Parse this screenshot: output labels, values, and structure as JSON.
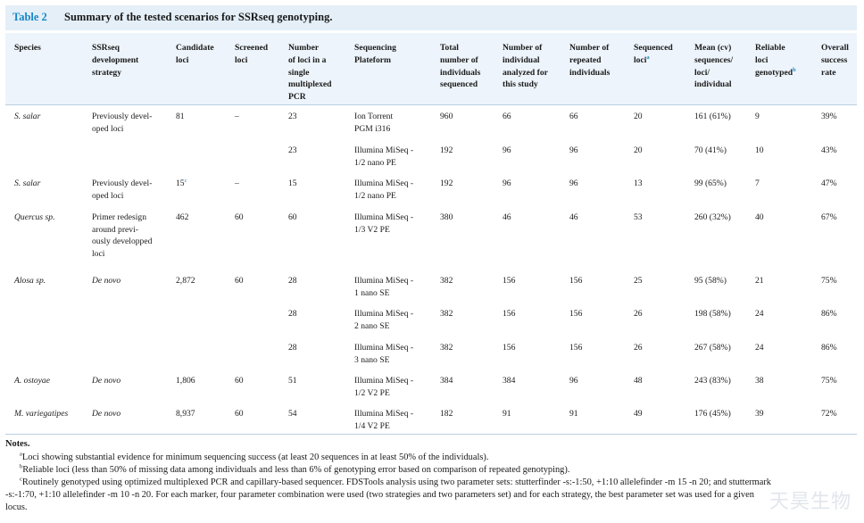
{
  "table": {
    "number": "Table 2",
    "title": "Summary of the tested scenarios for SSRseq genotyping.",
    "headers": [
      "Species",
      "SSRseq\ndevelopment\nstrategy",
      "Candidate\nloci",
      "Screened\nloci",
      "Number\nof loci in a\nsingle\nmultiplexed\nPCR",
      "Sequencing\nPlateform",
      "Total\nnumber of\nindividuals\nsequenced",
      "Number of\nindividual\nanalyzed for\nthis study",
      "Number of\nrepeated\nindividuals",
      "Sequenced\nloci",
      "Mean (cv)\nsequences/\nloci/\nindividual",
      "Reliable\nloci\ngenotyped",
      "Overall\nsuccess\nrate"
    ],
    "header_sups": {
      "sequenced_loci": "a",
      "reliable_loci": "b"
    },
    "rows": [
      {
        "species": "S. salar",
        "strategy": "Previously devel-\noped loci",
        "candidate": "81",
        "screened": "–",
        "multiplex": "23",
        "platform": "Ion Torrent\nPGM i316",
        "total": "960",
        "analyzed": "66",
        "repeated": "66",
        "sequenced": "20",
        "mean": "161 (61%)",
        "reliable": "9",
        "success": "39%"
      },
      {
        "species": "",
        "strategy": "",
        "candidate": "",
        "screened": "",
        "multiplex": "23",
        "platform": "Illumina MiSeq -\n1/2 nano PE",
        "total": "192",
        "analyzed": "96",
        "repeated": "96",
        "sequenced": "20",
        "mean": "70 (41%)",
        "reliable": "10",
        "success": "43%"
      },
      {
        "species": "S. salar",
        "strategy": "Previously devel-\noped loci",
        "candidate": "15",
        "candidate_sup": "c",
        "screened": "–",
        "multiplex": "15",
        "platform": "Illumina MiSeq -\n1/2 nano PE",
        "total": "192",
        "analyzed": "96",
        "repeated": "96",
        "sequenced": "13",
        "mean": "99 (65%)",
        "reliable": "7",
        "success": "47%"
      },
      {
        "species": "Quercus sp.",
        "strategy": "Primer redesign\naround previ-\nously developped\nloci",
        "candidate": "462",
        "screened": "60",
        "multiplex": "60",
        "platform": "Illumina MiSeq -\n1/3 V2 PE",
        "total": "380",
        "analyzed": "46",
        "repeated": "46",
        "sequenced": "53",
        "mean": "260 (32%)",
        "reliable": "40",
        "success": "67%"
      },
      {
        "species": "Alosa sp.",
        "strategy": "De novo",
        "candidate": "2,872",
        "screened": "60",
        "multiplex": "28",
        "platform": "Illumina MiSeq -\n1 nano SE",
        "total": "382",
        "analyzed": "156",
        "repeated": "156",
        "sequenced": "25",
        "mean": "95 (58%)",
        "reliable": "21",
        "success": "75%"
      },
      {
        "species": "",
        "strategy": "",
        "candidate": "",
        "screened": "",
        "multiplex": "28",
        "platform": "Illumina MiSeq -\n2 nano SE",
        "total": "382",
        "analyzed": "156",
        "repeated": "156",
        "sequenced": "26",
        "mean": "198 (58%)",
        "reliable": "24",
        "success": "86%"
      },
      {
        "species": "",
        "strategy": "",
        "candidate": "",
        "screened": "",
        "multiplex": "28",
        "platform": "Illumina MiSeq -\n3 nano SE",
        "total": "382",
        "analyzed": "156",
        "repeated": "156",
        "sequenced": "26",
        "mean": "267 (58%)",
        "reliable": "24",
        "success": "86%"
      },
      {
        "species": "A. ostoyae",
        "strategy": "De novo",
        "candidate": "1,806",
        "screened": "60",
        "multiplex": "51",
        "platform": "Illumina MiSeq -\n1/2 V2 PE",
        "total": "384",
        "analyzed": "384",
        "repeated": "96",
        "sequenced": "48",
        "mean": "243 (83%)",
        "reliable": "38",
        "success": "75%"
      },
      {
        "species": "M. variegatipes",
        "strategy": "De novo",
        "candidate": "8,937",
        "screened": "60",
        "multiplex": "54",
        "platform": "Illumina MiSeq -\n1/4 V2 PE",
        "total": "182",
        "analyzed": "91",
        "repeated": "91",
        "sequenced": "49",
        "mean": "176 (45%)",
        "reliable": "39",
        "success": "72%"
      }
    ]
  },
  "notes": {
    "heading": "Notes.",
    "items": [
      {
        "mark": "a",
        "text": "Loci showing substantial evidence for minimum sequencing success (at least 20 sequences in at least 50% of the individuals)."
      },
      {
        "mark": "b",
        "text": "Reliable loci (less than 50% of missing data among individuals and less than 6% of genotyping error based on comparison of repeated genotyping)."
      },
      {
        "mark": "c",
        "text": "Routinely genotyped using optimized multiplexed PCR and capillary-based sequencer. FDSTools analysis using two parameter sets: stutterfinder -s:-1:50, +1:10 allelefinder -m 15 -n 20; and stuttermark\n-s:-1:70, +1:10 allelefinder -m 10 -n 20. For each marker, four parameter combination were used (two strategies and two parameters set) and for each strategy, the best parameter set was used for a given\nlocus."
      }
    ]
  },
  "watermark": "天昊生物",
  "colors": {
    "accent": "#1b86c8",
    "title_bg": "#e4eff8",
    "header_bg": "#edf4fb"
  }
}
